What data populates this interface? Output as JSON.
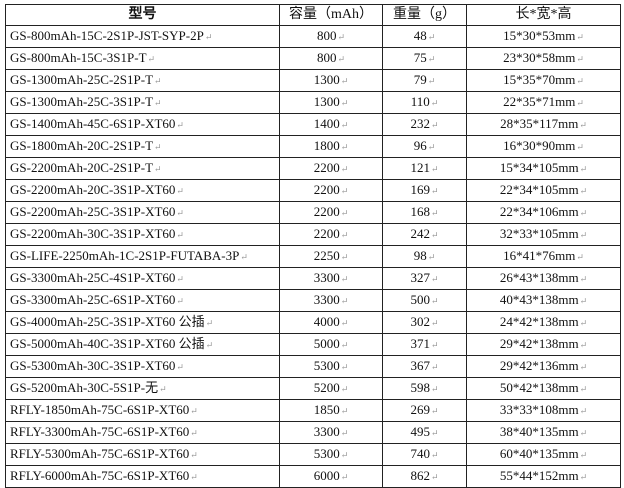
{
  "table": {
    "headers": [
      "型号",
      "容量（mAh）",
      "重量（g）",
      "长*宽*高"
    ],
    "rows": [
      [
        "GS-800mAh-15C-2S1P-JST-SYP-2P",
        "800",
        "48",
        "15*30*53mm"
      ],
      [
        "GS-800mAh-15C-3S1P-T",
        "800",
        "75",
        "23*30*58mm"
      ],
      [
        "GS-1300mAh-25C-2S1P-T",
        "1300",
        "79",
        "15*35*70mm"
      ],
      [
        "GS-1300mAh-25C-3S1P-T",
        "1300",
        "110",
        "22*35*71mm"
      ],
      [
        "GS-1400mAh-45C-6S1P-XT60",
        "1400",
        "232",
        "28*35*117mm"
      ],
      [
        "GS-1800mAh-20C-2S1P-T",
        "1800",
        "96",
        "16*30*90mm"
      ],
      [
        "GS-2200mAh-20C-2S1P-T",
        "2200",
        "121",
        "15*34*105mm"
      ],
      [
        "GS-2200mAh-20C-3S1P-XT60",
        "2200",
        "169",
        "22*34*105mm"
      ],
      [
        "GS-2200mAh-25C-3S1P-XT60",
        "2200",
        "168",
        "22*34*106mm"
      ],
      [
        "GS-2200mAh-30C-3S1P-XT60",
        "2200",
        "242",
        "32*33*105mm"
      ],
      [
        "GS-LIFE-2250mAh-1C-2S1P-FUTABA-3P",
        "2250",
        "98",
        "16*41*76mm"
      ],
      [
        "GS-3300mAh-25C-4S1P-XT60",
        "3300",
        "327",
        "26*43*138mm"
      ],
      [
        "GS-3300mAh-25C-6S1P-XT60",
        "3300",
        "500",
        "40*43*138mm"
      ],
      [
        "GS-4000mAh-25C-3S1P-XT60 公插",
        "4000",
        "302",
        "24*42*138mm"
      ],
      [
        "GS-5000mAh-40C-3S1P-XT60 公插",
        "5000",
        "371",
        "29*42*138mm"
      ],
      [
        "GS-5300mAh-30C-3S1P-XT60",
        "5300",
        "367",
        "29*42*136mm"
      ],
      [
        "GS-5200mAh-30C-5S1P-无",
        "5200",
        "598",
        "50*42*138mm"
      ],
      [
        "RFLY-1850mAh-75C-6S1P-XT60",
        "1850",
        "269",
        "33*33*108mm"
      ],
      [
        "RFLY-3300mAh-75C-6S1P-XT60",
        "3300",
        "495",
        "38*40*135mm"
      ],
      [
        "RFLY-5300mAh-75C-6S1P-XT60",
        "5300",
        "740",
        "60*40*135mm"
      ],
      [
        "RFLY-6000mAh-75C-6S1P-XT60",
        "6000",
        "862",
        "55*44*152mm"
      ]
    ]
  }
}
